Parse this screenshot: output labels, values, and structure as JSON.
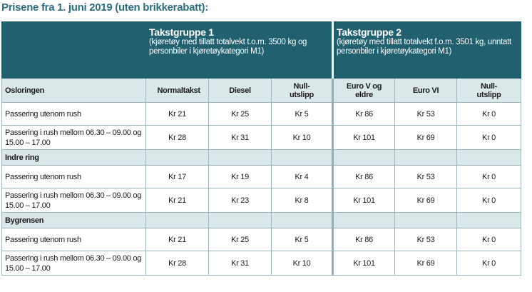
{
  "title": "Prisene fra 1. juni 2019 (uten brikkerabatt):",
  "table": {
    "groups": [
      {
        "title": "Takstgruppe 1",
        "description": "(kjøretøy med tillatt totalvekt t.o.m. 3500 kg og personbiler i kjøretøykategori M1)"
      },
      {
        "title": "Takstgruppe 2",
        "description": "(kjøretøy med tillatt totalvekt f.o.m. 3501 kg, unntatt personbiler i kjøretøykategori M1)"
      }
    ],
    "columns": [
      "Normaltakst",
      "Diesel",
      "Null-utslipp",
      "Euro V og eldre",
      "Euro VI",
      "Null-utslipp"
    ],
    "sections": [
      {
        "name": "Osloringen",
        "rows": [
          {
            "label": "Passering utenom rush",
            "values": [
              "Kr 21",
              "Kr 25",
              "Kr 5",
              "Kr 86",
              "Kr 53",
              "Kr 0"
            ]
          },
          {
            "label": "Passering i rush mellom 06.30 – 09.00 og 15.00 – 17.00",
            "values": [
              "Kr 28",
              "Kr 31",
              "Kr 10",
              "Kr 101",
              "Kr 69",
              "Kr 0"
            ]
          }
        ]
      },
      {
        "name": "Indre ring",
        "rows": [
          {
            "label": "Passering utenom rush",
            "values": [
              "Kr 17",
              "Kr 19",
              "Kr 4",
              "Kr 86",
              "Kr 53",
              "Kr 0"
            ]
          },
          {
            "label": "Passering i rush mellom 06.30 – 09.00 og 15.00 – 17.00",
            "values": [
              "Kr 21",
              "Kr 23",
              "Kr 8",
              "Kr 101",
              "Kr 69",
              "Kr 0"
            ]
          }
        ]
      },
      {
        "name": "Bygrensen",
        "rows": [
          {
            "label": "Passering utenom rush",
            "values": [
              "Kr 21",
              "Kr 25",
              "Kr 5",
              "Kr 86",
              "Kr 53",
              "Kr 0"
            ]
          },
          {
            "label": "Passering i rush mellom 06.30 – 09.00 og 15.00 – 17.00",
            "values": [
              "Kr 28",
              "Kr 31",
              "Kr 10",
              "Kr 101",
              "Kr 69",
              "Kr 0"
            ]
          }
        ]
      }
    ]
  }
}
